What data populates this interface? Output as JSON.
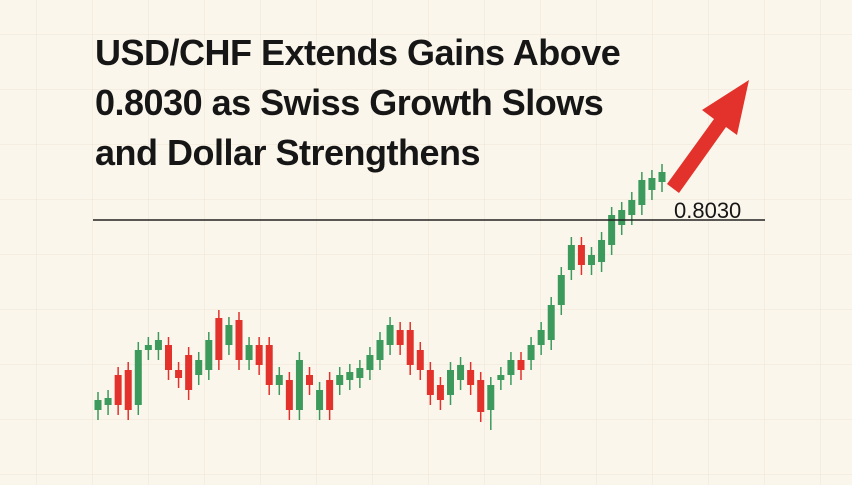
{
  "chart_data": {
    "type": "candlestick",
    "title": [
      "USD/CHF Extends Gains Above",
      "0.8030 as Swiss Growth Slows",
      "and Dollar Strengthens"
    ],
    "level": {
      "value": 0.803,
      "label": "0.8030"
    },
    "ylim": [
      0.7915,
      0.8095
    ],
    "up_color": "#3b9a5c",
    "down_color": "#e2322b",
    "open": [
      0.7935,
      0.79375,
      0.79525,
      0.7955,
      0.79375,
      0.7965,
      0.7965,
      0.79675,
      0.7955,
      0.79625,
      0.79525,
      0.7955,
      0.7981,
      0.79675,
      0.798,
      0.796,
      0.79675,
      0.79675,
      0.79475,
      0.795,
      0.7935,
      0.79525,
      0.7935,
      0.795,
      0.79475,
      0.795,
      0.7951,
      0.7955,
      0.796,
      0.79675,
      0.7975,
      0.7975,
      0.7965,
      0.7955,
      0.79475,
      0.79425,
      0.795,
      0.7955,
      0.795,
      0.7935,
      0.795,
      0.79525,
      0.796,
      0.796,
      0.79675,
      0.797,
      0.79875,
      0.8005,
      0.80175,
      0.80075,
      0.8009,
      0.80175,
      0.80275,
      0.80325,
      0.80375,
      0.8045,
      0.8049
    ],
    "high": [
      0.7944,
      0.7945,
      0.79565,
      0.7959,
      0.7969,
      0.79715,
      0.7974,
      0.79715,
      0.7959,
      0.79665,
      0.7964,
      0.7974,
      0.7985,
      0.79815,
      0.7984,
      0.79715,
      0.79715,
      0.79715,
      0.79565,
      0.7954,
      0.7964,
      0.79565,
      0.7949,
      0.7954,
      0.79565,
      0.7958,
      0.796,
      0.79665,
      0.7974,
      0.79815,
      0.7979,
      0.7979,
      0.7969,
      0.7959,
      0.79515,
      0.7959,
      0.79615,
      0.7959,
      0.7954,
      0.79515,
      0.79565,
      0.7964,
      0.7964,
      0.79715,
      0.7979,
      0.79915,
      0.80065,
      0.80215,
      0.80215,
      0.80165,
      0.8024,
      0.80365,
      0.8039,
      0.8044,
      0.8054,
      0.8055,
      0.8058
    ],
    "low": [
      0.793,
      0.79325,
      0.79325,
      0.793,
      0.79325,
      0.796,
      0.796,
      0.795,
      0.7946,
      0.794,
      0.79475,
      0.795,
      0.7955,
      0.79625,
      0.7955,
      0.7955,
      0.79525,
      0.79425,
      0.79425,
      0.793,
      0.793,
      0.79425,
      0.793,
      0.793,
      0.79425,
      0.7945,
      0.7946,
      0.795,
      0.7955,
      0.79625,
      0.79625,
      0.79525,
      0.795,
      0.79375,
      0.7935,
      0.79375,
      0.7945,
      0.79425,
      0.7929,
      0.7925,
      0.7945,
      0.79475,
      0.795,
      0.7955,
      0.79625,
      0.7965,
      0.79825,
      0.8,
      0.80025,
      0.80025,
      0.8004,
      0.80125,
      0.80225,
      0.80275,
      0.80325,
      0.804,
      0.8044
    ],
    "close": [
      0.794,
      0.7941,
      0.79375,
      0.7935,
      0.7965,
      0.79675,
      0.797,
      0.7955,
      0.7951,
      0.7945,
      0.796,
      0.797,
      0.796,
      0.79775,
      0.796,
      0.79675,
      0.79575,
      0.79475,
      0.79525,
      0.7935,
      0.796,
      0.79475,
      0.7945,
      0.7935,
      0.79525,
      0.7954,
      0.7956,
      0.79625,
      0.797,
      0.79775,
      0.79675,
      0.79575,
      0.7955,
      0.79425,
      0.794,
      0.7955,
      0.79575,
      0.79475,
      0.7934,
      0.79475,
      0.79525,
      0.796,
      0.7955,
      0.79675,
      0.7975,
      0.79875,
      0.80025,
      0.80175,
      0.80075,
      0.80125,
      0.802,
      0.80325,
      0.8035,
      0.804,
      0.805,
      0.8051,
      0.8054
    ]
  }
}
